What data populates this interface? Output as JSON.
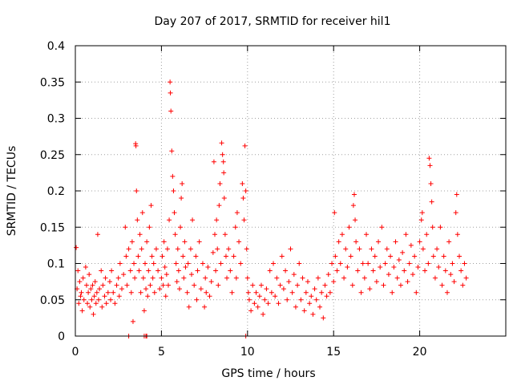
{
  "chart_data": {
    "type": "scatter",
    "title": "Day 207 of 2017, SRMTID for receiver hil1",
    "xlabel": "GPS time / hours",
    "ylabel": "SRMTID / TECUs",
    "xlim": [
      0,
      25
    ],
    "ylim": [
      0,
      0.4
    ],
    "x_ticks": [
      0,
      5,
      10,
      15,
      20
    ],
    "x_tick_labels": [
      "0",
      "5",
      "10",
      "15",
      "20"
    ],
    "y_ticks": [
      0,
      0.05,
      0.1,
      0.15,
      0.2,
      0.25,
      0.3,
      0.35,
      0.4
    ],
    "y_tick_labels": [
      "0",
      "0.05",
      "0.1",
      "0.15",
      "0.2",
      "0.25",
      "0.3",
      "0.35",
      "0.4"
    ],
    "grid": true,
    "marker": "+",
    "marker_color": "#ff0000",
    "series": [
      {
        "name": "SRMTID",
        "points": [
          [
            0.05,
            0.122
          ],
          [
            0.1,
            0.065
          ],
          [
            0.15,
            0.09
          ],
          [
            0.2,
            0.045
          ],
          [
            0.25,
            0.075
          ],
          [
            0.3,
            0.055
          ],
          [
            0.35,
            0.06
          ],
          [
            0.4,
            0.035
          ],
          [
            0.45,
            0.08
          ],
          [
            0.5,
            0.05
          ],
          [
            0.6,
            0.095
          ],
          [
            0.65,
            0.07
          ],
          [
            0.7,
            0.045
          ],
          [
            0.75,
            0.06
          ],
          [
            0.8,
            0.085
          ],
          [
            0.85,
            0.04
          ],
          [
            0.9,
            0.065
          ],
          [
            0.95,
            0.05
          ],
          [
            1.0,
            0.07
          ],
          [
            1.05,
            0.03
          ],
          [
            1.1,
            0.055
          ],
          [
            1.15,
            0.075
          ],
          [
            1.2,
            0.045
          ],
          [
            1.25,
            0.06
          ],
          [
            1.3,
            0.14
          ],
          [
            1.35,
            0.05
          ],
          [
            1.4,
            0.065
          ],
          [
            1.5,
            0.09
          ],
          [
            1.55,
            0.04
          ],
          [
            1.6,
            0.07
          ],
          [
            1.7,
            0.055
          ],
          [
            1.75,
            0.08
          ],
          [
            1.8,
            0.045
          ],
          [
            1.9,
            0.06
          ],
          [
            2.0,
            0.075
          ],
          [
            2.05,
            0.05
          ],
          [
            2.1,
            0.09
          ],
          [
            2.2,
            0.06
          ],
          [
            2.3,
            0.045
          ],
          [
            2.4,
            0.07
          ],
          [
            2.5,
            0.08
          ],
          [
            2.55,
            0.055
          ],
          [
            2.6,
            0.1
          ],
          [
            2.7,
            0.065
          ],
          [
            2.8,
            0.085
          ],
          [
            2.9,
            0.15
          ],
          [
            2.95,
            0.11
          ],
          [
            3.0,
            0.07
          ],
          [
            3.1,
            0.12
          ],
          [
            3.2,
            0.09
          ],
          [
            3.25,
            0.06
          ],
          [
            3.3,
            0.13
          ],
          [
            3.35,
            0.02
          ],
          [
            3.4,
            0.1
          ],
          [
            3.45,
            0.08
          ],
          [
            3.5,
            0.265
          ],
          [
            3.52,
            0.262
          ],
          [
            3.55,
            0.2
          ],
          [
            3.6,
            0.16
          ],
          [
            3.65,
            0.11
          ],
          [
            3.7,
            0.09
          ],
          [
            3.75,
            0.14
          ],
          [
            3.8,
            0.06
          ],
          [
            3.85,
            0.12
          ],
          [
            3.9,
            0.17
          ],
          [
            3.95,
            0.08
          ],
          [
            4.0,
            0.035
          ],
          [
            4.05,
            0.1
          ],
          [
            4.1,
            0.065
          ],
          [
            4.15,
            0.13
          ],
          [
            4.2,
            0.055
          ],
          [
            4.25,
            0.09
          ],
          [
            4.3,
            0.15
          ],
          [
            4.35,
            0.07
          ],
          [
            4.4,
            0.18
          ],
          [
            4.45,
            0.11
          ],
          [
            4.5,
            0.08
          ],
          [
            4.55,
            0.1
          ],
          [
            4.6,
            0.06
          ],
          [
            4.7,
            0.12
          ],
          [
            4.8,
            0.09
          ],
          [
            4.9,
            0.065
          ],
          [
            5.0,
            0.08
          ],
          [
            5.05,
            0.11
          ],
          [
            5.1,
            0.07
          ],
          [
            5.15,
            0.13
          ],
          [
            5.2,
            0.095
          ],
          [
            5.25,
            0.055
          ],
          [
            5.3,
            0.085
          ],
          [
            5.35,
            0.12
          ],
          [
            5.4,
            0.07
          ],
          [
            5.45,
            0.16
          ],
          [
            5.5,
            0.35
          ],
          [
            5.52,
            0.335
          ],
          [
            5.55,
            0.31
          ],
          [
            5.6,
            0.255
          ],
          [
            5.65,
            0.22
          ],
          [
            5.7,
            0.2
          ],
          [
            5.75,
            0.17
          ],
          [
            5.8,
            0.14
          ],
          [
            5.85,
            0.1
          ],
          [
            5.9,
            0.075
          ],
          [
            5.95,
            0.12
          ],
          [
            6.0,
            0.09
          ],
          [
            6.05,
            0.065
          ],
          [
            6.1,
            0.15
          ],
          [
            6.15,
            0.19
          ],
          [
            6.2,
            0.21
          ],
          [
            6.25,
            0.11
          ],
          [
            6.3,
            0.08
          ],
          [
            6.35,
            0.13
          ],
          [
            6.4,
            0.095
          ],
          [
            6.5,
            0.06
          ],
          [
            6.55,
            0.1
          ],
          [
            6.6,
            0.04
          ],
          [
            6.7,
            0.12
          ],
          [
            6.75,
            0.085
          ],
          [
            6.8,
            0.16
          ],
          [
            6.9,
            0.07
          ],
          [
            7.0,
            0.11
          ],
          [
            7.05,
            0.05
          ],
          [
            7.1,
            0.09
          ],
          [
            7.2,
            0.13
          ],
          [
            7.3,
            0.065
          ],
          [
            7.4,
            0.1
          ],
          [
            7.5,
            0.04
          ],
          [
            7.55,
            0.08
          ],
          [
            7.6,
            0.06
          ],
          [
            7.7,
            0.095
          ],
          [
            7.8,
            0.055
          ],
          [
            7.9,
            0.075
          ],
          [
            8.0,
            0.115
          ],
          [
            8.05,
            0.24
          ],
          [
            8.1,
            0.14
          ],
          [
            8.15,
            0.09
          ],
          [
            8.2,
            0.16
          ],
          [
            8.25,
            0.12
          ],
          [
            8.3,
            0.07
          ],
          [
            8.35,
            0.18
          ],
          [
            8.4,
            0.21
          ],
          [
            8.45,
            0.1
          ],
          [
            8.5,
            0.266
          ],
          [
            8.55,
            0.25
          ],
          [
            8.6,
            0.24
          ],
          [
            8.62,
            0.225
          ],
          [
            8.65,
            0.19
          ],
          [
            8.7,
            0.14
          ],
          [
            8.75,
            0.11
          ],
          [
            8.8,
            0.08
          ],
          [
            8.9,
            0.12
          ],
          [
            9.0,
            0.09
          ],
          [
            9.1,
            0.06
          ],
          [
            9.2,
            0.11
          ],
          [
            9.3,
            0.15
          ],
          [
            9.35,
            0.08
          ],
          [
            9.4,
            0.17
          ],
          [
            9.5,
            0.13
          ],
          [
            9.6,
            0.1
          ],
          [
            9.7,
            0.21
          ],
          [
            9.75,
            0.19
          ],
          [
            9.8,
            0.16
          ],
          [
            9.85,
            0.262
          ],
          [
            9.9,
            0.2
          ],
          [
            9.95,
            0.12
          ],
          [
            10.0,
            0.08
          ],
          [
            10.05,
            0.06
          ],
          [
            10.1,
            0.05
          ],
          [
            10.2,
            0.035
          ],
          [
            10.3,
            0.07
          ],
          [
            10.4,
            0.045
          ],
          [
            10.5,
            0.06
          ],
          [
            10.6,
            0.04
          ],
          [
            10.7,
            0.055
          ],
          [
            10.8,
            0.07
          ],
          [
            10.9,
            0.03
          ],
          [
            11.0,
            0.05
          ],
          [
            11.1,
            0.065
          ],
          [
            11.2,
            0.045
          ],
          [
            11.3,
            0.09
          ],
          [
            11.4,
            0.06
          ],
          [
            11.5,
            0.1
          ],
          [
            11.6,
            0.055
          ],
          [
            11.7,
            0.08
          ],
          [
            11.8,
            0.045
          ],
          [
            11.9,
            0.07
          ],
          [
            12.0,
            0.11
          ],
          [
            12.1,
            0.065
          ],
          [
            12.2,
            0.09
          ],
          [
            12.3,
            0.05
          ],
          [
            12.4,
            0.075
          ],
          [
            12.5,
            0.12
          ],
          [
            12.6,
            0.06
          ],
          [
            12.7,
            0.085
          ],
          [
            12.8,
            0.04
          ],
          [
            12.9,
            0.07
          ],
          [
            13.0,
            0.1
          ],
          [
            13.1,
            0.05
          ],
          [
            13.2,
            0.08
          ],
          [
            13.3,
            0.035
          ],
          [
            13.4,
            0.06
          ],
          [
            13.5,
            0.075
          ],
          [
            13.6,
            0.045
          ],
          [
            13.7,
            0.055
          ],
          [
            13.8,
            0.03
          ],
          [
            13.9,
            0.065
          ],
          [
            14.0,
            0.05
          ],
          [
            14.1,
            0.08
          ],
          [
            14.2,
            0.04
          ],
          [
            14.3,
            0.06
          ],
          [
            14.4,
            0.025
          ],
          [
            14.5,
            0.07
          ],
          [
            14.6,
            0.055
          ],
          [
            14.7,
            0.085
          ],
          [
            14.8,
            0.06
          ],
          [
            14.9,
            0.1
          ],
          [
            15.0,
            0.075
          ],
          [
            15.05,
            0.17
          ],
          [
            15.1,
            0.11
          ],
          [
            15.2,
            0.09
          ],
          [
            15.3,
            0.13
          ],
          [
            15.4,
            0.1
          ],
          [
            15.5,
            0.14
          ],
          [
            15.6,
            0.08
          ],
          [
            15.7,
            0.12
          ],
          [
            15.8,
            0.095
          ],
          [
            15.9,
            0.15
          ],
          [
            16.0,
            0.11
          ],
          [
            16.1,
            0.07
          ],
          [
            16.15,
            0.18
          ],
          [
            16.2,
            0.195
          ],
          [
            16.25,
            0.16
          ],
          [
            16.3,
            0.13
          ],
          [
            16.4,
            0.09
          ],
          [
            16.5,
            0.12
          ],
          [
            16.6,
            0.06
          ],
          [
            16.7,
            0.1
          ],
          [
            16.8,
            0.08
          ],
          [
            16.9,
            0.14
          ],
          [
            17.0,
            0.1
          ],
          [
            17.1,
            0.065
          ],
          [
            17.2,
            0.12
          ],
          [
            17.3,
            0.09
          ],
          [
            17.4,
            0.11
          ],
          [
            17.5,
            0.075
          ],
          [
            17.6,
            0.13
          ],
          [
            17.7,
            0.095
          ],
          [
            17.8,
            0.15
          ],
          [
            17.9,
            0.07
          ],
          [
            18.0,
            0.1
          ],
          [
            18.1,
            0.12
          ],
          [
            18.2,
            0.085
          ],
          [
            18.3,
            0.11
          ],
          [
            18.4,
            0.06
          ],
          [
            18.5,
            0.095
          ],
          [
            18.6,
            0.13
          ],
          [
            18.7,
            0.08
          ],
          [
            18.8,
            0.105
          ],
          [
            18.9,
            0.07
          ],
          [
            19.0,
            0.115
          ],
          [
            19.1,
            0.09
          ],
          [
            19.2,
            0.14
          ],
          [
            19.3,
            0.075
          ],
          [
            19.4,
            0.1
          ],
          [
            19.5,
            0.125
          ],
          [
            19.6,
            0.085
          ],
          [
            19.7,
            0.11
          ],
          [
            19.8,
            0.06
          ],
          [
            19.9,
            0.095
          ],
          [
            20.0,
            0.13
          ],
          [
            20.1,
            0.16
          ],
          [
            20.15,
            0.17
          ],
          [
            20.2,
            0.12
          ],
          [
            20.3,
            0.09
          ],
          [
            20.4,
            0.14
          ],
          [
            20.5,
            0.1
          ],
          [
            20.55,
            0.245
          ],
          [
            20.6,
            0.235
          ],
          [
            20.65,
            0.21
          ],
          [
            20.7,
            0.185
          ],
          [
            20.75,
            0.15
          ],
          [
            20.8,
            0.11
          ],
          [
            20.9,
            0.08
          ],
          [
            21.0,
            0.12
          ],
          [
            21.1,
            0.095
          ],
          [
            21.2,
            0.15
          ],
          [
            21.3,
            0.07
          ],
          [
            21.4,
            0.11
          ],
          [
            21.5,
            0.09
          ],
          [
            21.6,
            0.06
          ],
          [
            21.7,
            0.13
          ],
          [
            21.8,
            0.085
          ],
          [
            21.9,
            0.1
          ],
          [
            22.0,
            0.075
          ],
          [
            22.1,
            0.17
          ],
          [
            22.15,
            0.195
          ],
          [
            22.2,
            0.14
          ],
          [
            22.3,
            0.11
          ],
          [
            22.4,
            0.09
          ],
          [
            22.5,
            0.07
          ],
          [
            22.6,
            0.1
          ],
          [
            22.7,
            0.08
          ],
          [
            3.1,
            0.0
          ],
          [
            4.0,
            0.0
          ],
          [
            4.1,
            0.0
          ],
          [
            4.15,
            0.0
          ],
          [
            9.9,
            0.0
          ]
        ]
      }
    ]
  }
}
